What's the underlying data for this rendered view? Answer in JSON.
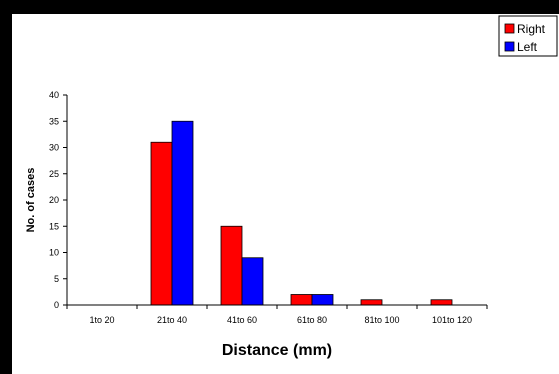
{
  "chart_data": {
    "type": "bar",
    "categories": [
      "1to  20",
      "21to 40",
      "41to 60",
      "61to 80",
      "81to  100",
      "101to  120"
    ],
    "series": [
      {
        "name": "Right",
        "values": [
          0,
          31,
          15,
          2,
          1,
          1
        ],
        "color": "#ff0000"
      },
      {
        "name": "Left",
        "values": [
          0,
          35,
          9,
          2,
          0,
          0
        ],
        "color": "#0000ff"
      }
    ],
    "xlabel": "Distance (mm)",
    "ylabel": "No. of cases",
    "ylim": [
      0,
      40
    ],
    "yticks": [
      0,
      5,
      10,
      15,
      20,
      25,
      30,
      35,
      40
    ],
    "grid": false,
    "legend_position": "top-right"
  }
}
